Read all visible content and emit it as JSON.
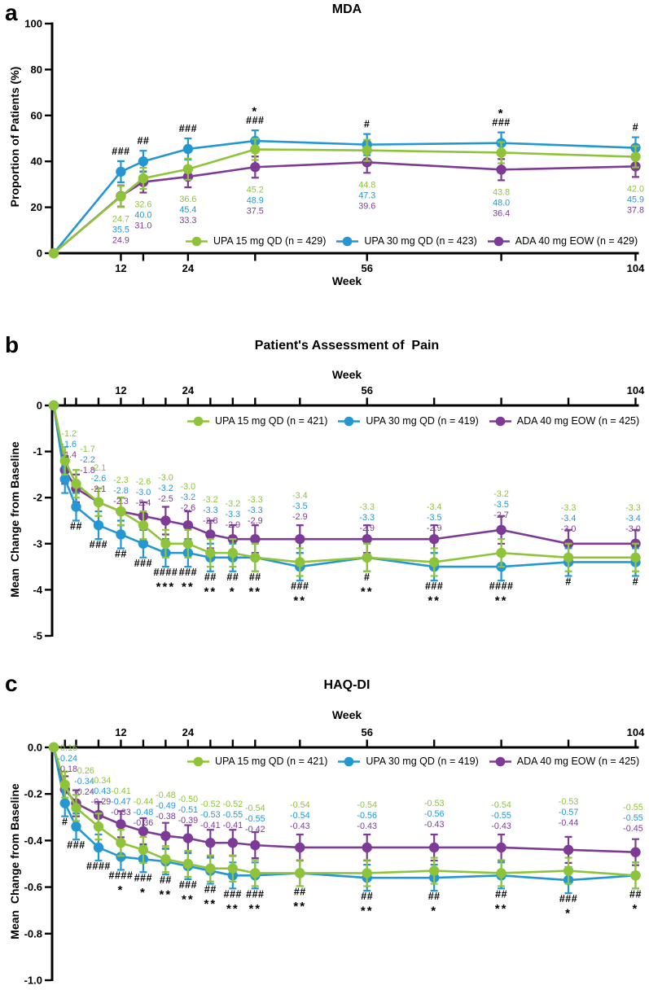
{
  "figure": {
    "background": "#ffffff"
  },
  "chart_data": [
    {
      "type": "line",
      "panel_label": "a",
      "title": "MDA",
      "x_axis_label": "Week",
      "y_axis_label": "Proportion of Patients (%)",
      "ylim": [
        0,
        100
      ],
      "xlim": [
        0,
        104
      ],
      "grid": false,
      "legend_position": "bottom-inside",
      "y_tick_labels": [
        "0",
        "20",
        "40",
        "60",
        "80",
        "100"
      ],
      "x_ticks": [
        12,
        16,
        24,
        36,
        56,
        80,
        104
      ],
      "x_tick_labels": [
        12,
        24,
        56,
        104
      ],
      "weeks": [
        0,
        12,
        16,
        24,
        36,
        56,
        80,
        104
      ],
      "value_label_decimals": 1,
      "series": [
        {
          "name": "UPA 15 mg QD (n = 429)",
          "color": "#8fc33a",
          "values": [
            0,
            24.7,
            32.6,
            36.6,
            45.2,
            44.8,
            43.8,
            42.0
          ]
        },
        {
          "name": "UPA 30 mg QD (n = 423)",
          "color": "#2497d3",
          "values": [
            0,
            35.5,
            40.0,
            45.4,
            48.9,
            47.3,
            48.0,
            45.9
          ]
        },
        {
          "name": "ADA 40 mg EOW (n = 429)",
          "color": "#7d3b96",
          "values": [
            0,
            24.9,
            31.0,
            33.3,
            37.5,
            39.6,
            36.4,
            37.8
          ]
        }
      ],
      "annotations": [
        {
          "week": 12,
          "lines": [
            "###"
          ]
        },
        {
          "week": 16,
          "lines": [
            "##"
          ]
        },
        {
          "week": 24,
          "lines": [
            "###"
          ]
        },
        {
          "week": 36,
          "lines": [
            "*",
            "###"
          ]
        },
        {
          "week": 56,
          "lines": [
            "#"
          ]
        },
        {
          "week": 80,
          "lines": [
            "*",
            "###"
          ]
        },
        {
          "week": 104,
          "lines": [
            "#"
          ]
        }
      ]
    },
    {
      "type": "line",
      "panel_label": "b",
      "title": "Patient's Assessment of  Pain",
      "x_axis_label": "Week",
      "y_axis_label": "Mean  Change from Baseline",
      "ylim": [
        -5,
        0
      ],
      "xlim": [
        0,
        104
      ],
      "grid": false,
      "legend_position": "top-inside",
      "y_tick_labels": [
        "0",
        "-1",
        "-2",
        "-3",
        "-4",
        "-5"
      ],
      "x_ticks": [
        2,
        4,
        8,
        12,
        16,
        20,
        24,
        28,
        32,
        36,
        44,
        56,
        68,
        80,
        92,
        104
      ],
      "x_tick_labels": [
        12,
        24,
        56,
        104
      ],
      "weeks": [
        0,
        2,
        4,
        8,
        12,
        16,
        20,
        24,
        28,
        32,
        36,
        44,
        56,
        68,
        80,
        92,
        104
      ],
      "value_label_decimals": 1,
      "series": [
        {
          "name": "UPA 15 mg QD (n = 421)",
          "color": "#8fc33a",
          "values": [
            0,
            -1.2,
            -1.7,
            -2.1,
            -2.3,
            -2.6,
            -3.0,
            -3.0,
            -3.2,
            -3.2,
            -3.3,
            -3.4,
            -3.3,
            -3.4,
            -3.2,
            -3.3,
            -3.3
          ]
        },
        {
          "name": "UPA 30 mg QD (n = 419)",
          "color": "#2497d3",
          "values": [
            0,
            -1.6,
            -2.2,
            -2.6,
            -2.8,
            -3.0,
            -3.2,
            -3.2,
            -3.3,
            -3.3,
            -3.3,
            -3.5,
            -3.3,
            -3.5,
            -3.5,
            -3.4,
            -3.4
          ]
        },
        {
          "name": "ADA 40 mg EOW (n = 425)",
          "color": "#7d3b96",
          "values": [
            0,
            -1.4,
            -1.8,
            -2.1,
            -2.3,
            -2.4,
            -2.5,
            -2.6,
            -2.8,
            -2.9,
            -2.9,
            -2.9,
            -2.9,
            -2.9,
            -2.7,
            -3.0,
            -3.0
          ]
        }
      ],
      "annotations": [
        {
          "week": 4,
          "lines": [
            "##"
          ]
        },
        {
          "week": 8,
          "lines": [
            "###"
          ]
        },
        {
          "week": 12,
          "lines": [
            "##"
          ]
        },
        {
          "week": 16,
          "lines": [
            "###"
          ]
        },
        {
          "week": 20,
          "lines": [
            "####",
            "***"
          ]
        },
        {
          "week": 24,
          "lines": [
            "###",
            "**"
          ]
        },
        {
          "week": 28,
          "lines": [
            "##",
            "**"
          ]
        },
        {
          "week": 32,
          "lines": [
            "##",
            "*"
          ]
        },
        {
          "week": 36,
          "lines": [
            "##",
            "**"
          ]
        },
        {
          "week": 44,
          "lines": [
            "###",
            "**"
          ]
        },
        {
          "week": 56,
          "lines": [
            "#",
            "**"
          ]
        },
        {
          "week": 68,
          "lines": [
            "###",
            "**"
          ]
        },
        {
          "week": 80,
          "lines": [
            "####",
            "**"
          ]
        },
        {
          "week": 92,
          "lines": [
            "#"
          ]
        },
        {
          "week": 104,
          "lines": [
            "#"
          ]
        }
      ]
    },
    {
      "type": "line",
      "panel_label": "c",
      "title": "HAQ-DI",
      "x_axis_label": "Week",
      "y_axis_label": "Mean  Change from Baseline",
      "ylim": [
        -1.0,
        0
      ],
      "xlim": [
        0,
        104
      ],
      "grid": false,
      "legend_position": "top-inside",
      "y_tick_labels": [
        "0.0",
        "-0.2",
        "-0.4",
        "-0.6",
        "-0.8",
        "-1.0"
      ],
      "x_ticks": [
        2,
        4,
        8,
        12,
        16,
        20,
        24,
        28,
        32,
        36,
        44,
        56,
        68,
        80,
        92,
        104
      ],
      "x_tick_labels": [
        12,
        24,
        56,
        104
      ],
      "weeks": [
        0,
        2,
        4,
        8,
        12,
        16,
        20,
        24,
        28,
        32,
        36,
        44,
        56,
        68,
        80,
        92,
        104
      ],
      "value_label_decimals": 2,
      "series": [
        {
          "name": "UPA 15 mg QD (n = 421)",
          "color": "#8fc33a",
          "values": [
            0,
            -0.16,
            -0.26,
            -0.34,
            -0.41,
            -0.44,
            -0.48,
            -0.5,
            -0.52,
            -0.52,
            -0.54,
            -0.54,
            -0.54,
            -0.53,
            -0.54,
            -0.53,
            -0.55
          ]
        },
        {
          "name": "UPA 30 mg QD (n = 419)",
          "color": "#2497d3",
          "values": [
            0,
            -0.24,
            -0.34,
            -0.43,
            -0.47,
            -0.48,
            -0.49,
            -0.51,
            -0.53,
            -0.55,
            -0.55,
            -0.54,
            -0.56,
            -0.56,
            -0.55,
            -0.57,
            -0.55
          ]
        },
        {
          "name": "ADA 40 mg EOW (n = 425)",
          "color": "#7d3b96",
          "values": [
            0,
            -0.18,
            -0.24,
            -0.29,
            -0.33,
            -0.36,
            -0.38,
            -0.39,
            -0.41,
            -0.41,
            -0.42,
            -0.43,
            -0.43,
            -0.43,
            -0.43,
            -0.44,
            -0.45
          ]
        }
      ],
      "annotations": [
        {
          "week": 2,
          "lines": [
            "#"
          ]
        },
        {
          "week": 4,
          "lines": [
            "###"
          ]
        },
        {
          "week": 8,
          "lines": [
            "####"
          ]
        },
        {
          "week": 12,
          "lines": [
            "####",
            "*"
          ]
        },
        {
          "week": 16,
          "lines": [
            "###",
            "*"
          ]
        },
        {
          "week": 20,
          "lines": [
            "##",
            "**"
          ]
        },
        {
          "week": 24,
          "lines": [
            "###",
            "**"
          ]
        },
        {
          "week": 28,
          "lines": [
            "##",
            "**"
          ]
        },
        {
          "week": 32,
          "lines": [
            "###",
            "**"
          ]
        },
        {
          "week": 36,
          "lines": [
            "###",
            "**"
          ]
        },
        {
          "week": 44,
          "lines": [
            "##",
            "**"
          ]
        },
        {
          "week": 56,
          "lines": [
            "##",
            "**"
          ]
        },
        {
          "week": 68,
          "lines": [
            "##",
            "*"
          ]
        },
        {
          "week": 80,
          "lines": [
            "##",
            "**"
          ]
        },
        {
          "week": 92,
          "lines": [
            "###",
            "*"
          ]
        },
        {
          "week": 104,
          "lines": [
            "##",
            "*"
          ]
        }
      ]
    }
  ]
}
